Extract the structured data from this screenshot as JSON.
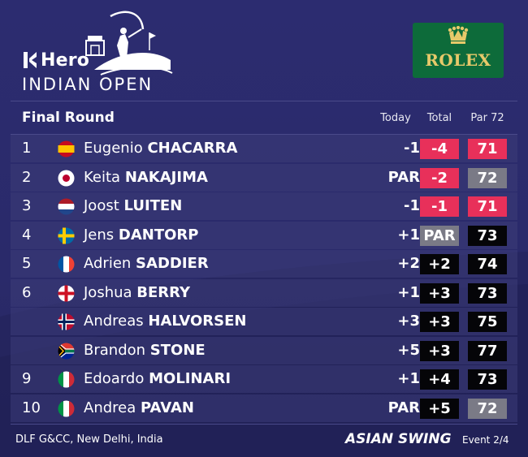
{
  "header": {
    "brand": "Hero",
    "event_name": "INDIAN OPEN",
    "sponsor": "ROLEX"
  },
  "table": {
    "round_label": "Final Round",
    "columns": {
      "today": "Today",
      "total": "Total",
      "par": "Par 72"
    },
    "rows": [
      {
        "pos": "1",
        "flag": "spain-flag-icon",
        "first": "Eugenio",
        "last": "CHACARRA",
        "today": "-1",
        "total": "-4",
        "total_style": "red",
        "round": "71",
        "round_style": "red"
      },
      {
        "pos": "2",
        "flag": "japan-flag-icon",
        "first": "Keita",
        "last": "NAKAJIMA",
        "today": "PAR",
        "total": "-2",
        "total_style": "red",
        "round": "72",
        "round_style": "grey"
      },
      {
        "pos": "3",
        "flag": "netherlands-flag-icon",
        "first": "Joost",
        "last": "LUITEN",
        "today": "-1",
        "total": "-1",
        "total_style": "red",
        "round": "71",
        "round_style": "red"
      },
      {
        "pos": "4",
        "flag": "sweden-flag-icon",
        "first": "Jens",
        "last": "DANTORP",
        "today": "+1",
        "total": "PAR",
        "total_style": "grey",
        "round": "73",
        "round_style": "black"
      },
      {
        "pos": "5",
        "flag": "france-flag-icon",
        "first": "Adrien",
        "last": "SADDIER",
        "today": "+2",
        "total": "+2",
        "total_style": "black",
        "round": "74",
        "round_style": "black"
      },
      {
        "pos": "6",
        "flag": "england-flag-icon",
        "first": "Joshua",
        "last": "BERRY",
        "today": "+1",
        "total": "+3",
        "total_style": "black",
        "round": "73",
        "round_style": "black"
      },
      {
        "pos": "",
        "flag": "norway-flag-icon",
        "first": "Andreas",
        "last": "HALVORSEN",
        "today": "+3",
        "total": "+3",
        "total_style": "black",
        "round": "75",
        "round_style": "black"
      },
      {
        "pos": "",
        "flag": "south-africa-flag-icon",
        "first": "Brandon",
        "last": "STONE",
        "today": "+5",
        "total": "+3",
        "total_style": "black",
        "round": "77",
        "round_style": "black"
      },
      {
        "pos": "9",
        "flag": "italy-flag-icon",
        "first": "Edoardo",
        "last": "MOLINARI",
        "today": "+1",
        "total": "+4",
        "total_style": "black",
        "round": "73",
        "round_style": "black"
      },
      {
        "pos": "10",
        "flag": "italy-flag-icon",
        "first": "Andrea",
        "last": "PAVAN",
        "today": "PAR",
        "total": "+5",
        "total_style": "black",
        "round": "72",
        "round_style": "grey"
      }
    ]
  },
  "footer": {
    "venue": "DLF G&CC, New Delhi, India",
    "swing": "ASIAN SWING",
    "event_count": "Event 2/4"
  },
  "colors": {
    "background": "#2a2a6a",
    "under_par": "#e8305a",
    "over_par": "#050508",
    "even_par": "#7a7a86",
    "rolex_green": "#0d6b3a",
    "rolex_gold": "#e7c96a"
  }
}
